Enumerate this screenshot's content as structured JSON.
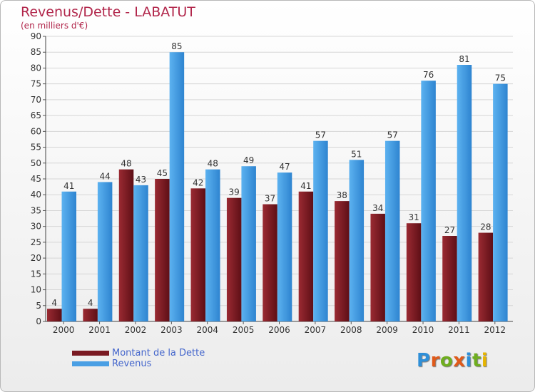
{
  "title": "Revenus/Dette - LABATUT",
  "subtitle": "(en milliers d'€)",
  "brand": {
    "text": "Proxiti"
  },
  "colors": {
    "debt": "#7a1a22",
    "revenue": "#4a9fe4",
    "title": "#b1254a",
    "legend_text": "#4466cc"
  },
  "chart_data": {
    "type": "bar",
    "title": "Revenus/Dette - LABATUT",
    "subtitle": "(en milliers d'€)",
    "categories": [
      "2000",
      "2001",
      "2002",
      "2003",
      "2004",
      "2005",
      "2006",
      "2007",
      "2008",
      "2009",
      "2010",
      "2011",
      "2012"
    ],
    "series": [
      {
        "name": "Montant de la Dette",
        "values": [
          4,
          4,
          48,
          45,
          42,
          39,
          37,
          41,
          38,
          34,
          31,
          27,
          28
        ],
        "color": "#7a1a22"
      },
      {
        "name": "Revenus",
        "values": [
          41,
          44,
          43,
          85,
          48,
          49,
          47,
          57,
          51,
          57,
          76,
          81,
          75
        ],
        "color": "#4a9fe4"
      }
    ],
    "ylim": [
      0,
      90
    ],
    "yticks": [
      0,
      5,
      10,
      15,
      20,
      25,
      30,
      35,
      40,
      45,
      50,
      55,
      60,
      65,
      70,
      75,
      80,
      85,
      90
    ],
    "grid": true,
    "legend_position": "bottom-left",
    "data_labels": true
  }
}
